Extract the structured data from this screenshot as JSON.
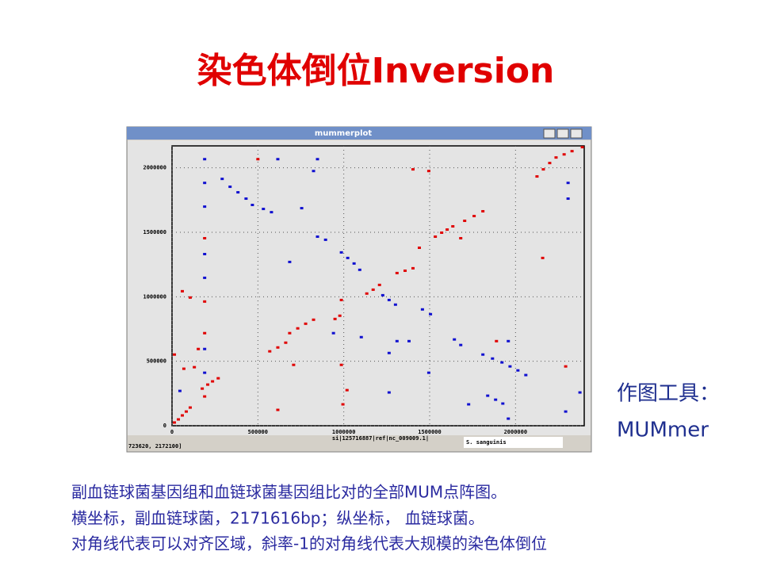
{
  "title": "染色体倒位Inversion",
  "tool": [
    "作图工具：",
    "MUMmer"
  ],
  "caption": [
    "副血链球菌基因组和血链球菌基因组比对的全部MUM点阵图。",
    "横坐标，副血链球菌，2171616bp；纵坐标， 血链球菌。",
    "对角线代表可以对齐区域，斜率-1的对角线代表大规模的染色体倒位"
  ],
  "chart_data": {
    "type": "scatter",
    "title": "mummerplot",
    "xlabel": "si|125716887|ref|nc_009009.1|",
    "ylabel": "S. sanguinis",
    "status": "723620, 2172100]",
    "xlim": [
      0,
      2400000
    ],
    "ylim": [
      0,
      2170000
    ],
    "xticks": [
      0,
      500000,
      1000000,
      1500000,
      2000000
    ],
    "yticks": [
      0,
      500000,
      1000000,
      1500000,
      2000000
    ],
    "grid": true,
    "series": [
      {
        "color": "#e00000",
        "x": [
          14000,
          37000,
          60000,
          83000,
          106000,
          176000,
          208000,
          236000,
          269000,
          569000,
          616000,
          662000,
          685000,
          732000,
          778000,
          824000,
          949000,
          977000,
          1134000,
          1171000,
          1208000,
          1310000,
          1357000,
          1403000,
          1440000,
          1533000,
          1570000,
          1602000,
          1635000,
          1704000,
          1759000,
          1810000,
          2125000,
          2162000,
          2199000,
          2236000,
          2283000,
          2329000,
          2389000,
          60000,
          106000,
          14000,
          69000,
          130000,
          153000,
          616000,
          708000,
          986000,
          986000,
          995000,
          1403000,
          1495000,
          1681000,
          1889000,
          2158000,
          2292000,
          190000,
          190000,
          1019000,
          500000,
          190000,
          190000
        ],
        "values": [
          25000,
          49000,
          80000,
          110000,
          141000,
          288000,
          319000,
          344000,
          368000,
          577000,
          607000,
          644000,
          718000,
          755000,
          791000,
          822000,
          828000,
          853000,
          1025000,
          1055000,
          1092000,
          1184000,
          1202000,
          1221000,
          1380000,
          1466000,
          1497000,
          1521000,
          1546000,
          1589000,
          1626000,
          1663000,
          1933000,
          1988000,
          2037000,
          2080000,
          2104000,
          2129000,
          2160000,
          1043000,
          994000,
          552000,
          442000,
          454000,
          595000,
          123000,
          472000,
          975000,
          472000,
          166000,
          1988000,
          1975000,
          1454000,
          656000,
          1301000,
          460000,
          963000,
          227000,
          276000,
          2067000,
          718000,
          1454000
        ]
      },
      {
        "color": "#1010d0",
        "x": [
          292000,
          338000,
          384000,
          431000,
          468000,
          532000,
          579000,
          847000,
          894000,
          986000,
          1023000,
          1060000,
          1093000,
          1227000,
          1264000,
          1301000,
          1458000,
          1505000,
          1644000,
          1681000,
          1810000,
          1866000,
          1921000,
          1968000,
          2014000,
          2060000,
          1838000,
          1884000,
          1926000,
          2292000,
          190000,
          190000,
          190000,
          190000,
          190000,
          190000,
          190000,
          616000,
          847000,
          824000,
          755000,
          685000,
          940000,
          1102000,
          1264000,
          1380000,
          1495000,
          1727000,
          1958000,
          2306000,
          2306000,
          2375000,
          1958000,
          46000,
          1264000,
          1310000
        ],
        "values": [
          1914000,
          1853000,
          1810000,
          1761000,
          1712000,
          1681000,
          1656000,
          1466000,
          1442000,
          1344000,
          1301000,
          1258000,
          1209000,
          1012000,
          975000,
          939000,
          902000,
          865000,
          669000,
          626000,
          552000,
          521000,
          491000,
          460000,
          429000,
          393000,
          233000,
          202000,
          172000,
          110000,
          2067000,
          1883000,
          1699000,
          1331000,
          1147000,
          595000,
          411000,
          2067000,
          2067000,
          1975000,
          1687000,
          1270000,
          718000,
          687000,
          258000,
          656000,
          411000,
          166000,
          656000,
          1883000,
          1761000,
          258000,
          55000,
          270000,
          564000,
          656000
        ]
      }
    ]
  }
}
